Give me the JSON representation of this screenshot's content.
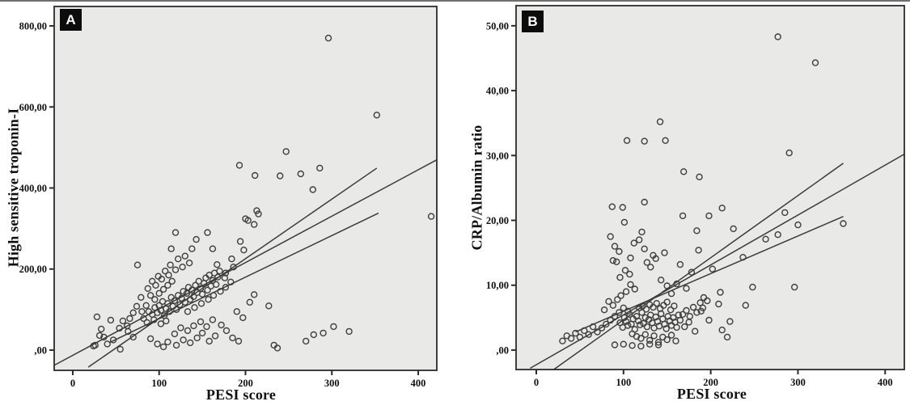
{
  "colors": {
    "plot_bg": "#e9e9e7",
    "frame": "#2b2b2b",
    "point_stroke": "#3d3d3d",
    "fit_line": "#3a3a3a",
    "text": "#111111",
    "badge_bg": "#0c0c0c",
    "badge_fg": "#ffffff"
  },
  "chart_data": [
    {
      "type": "scatter",
      "panel": "A",
      "xlabel": "PESI score",
      "ylabel": "High sensitive troponin-I",
      "xlim": [
        -21.5,
        421.5
      ],
      "ylim": [
        -50,
        848
      ],
      "grid": false,
      "legend": "none",
      "x_ticks": [
        {
          "v": 0,
          "label": "0"
        },
        {
          "v": 100,
          "label": "100"
        },
        {
          "v": 200,
          "label": "200"
        },
        {
          "v": 300,
          "label": "300"
        },
        {
          "v": 400,
          "label": "400"
        }
      ],
      "y_ticks": [
        {
          "v": 0,
          "label": ",00"
        },
        {
          "v": 200,
          "label": "200,00"
        },
        {
          "v": 400,
          "label": "400,00"
        },
        {
          "v": 600,
          "label": "600,00"
        },
        {
          "v": 800,
          "label": "800,00"
        }
      ],
      "fit_lines": [
        [
          -21,
          -37,
          421,
          469
        ],
        [
          18,
          -42,
          352,
          449
        ],
        [
          42,
          18,
          354,
          338
        ]
      ],
      "points": [
        [
          296,
          770
        ],
        [
          352,
          580
        ],
        [
          247,
          490
        ],
        [
          193,
          456
        ],
        [
          211,
          431
        ],
        [
          240,
          430
        ],
        [
          264,
          435
        ],
        [
          286,
          449
        ],
        [
          278,
          396
        ],
        [
          415,
          330
        ],
        [
          213,
          344
        ],
        [
          215,
          336
        ],
        [
          200,
          324
        ],
        [
          210,
          310
        ],
        [
          203,
          320
        ],
        [
          194,
          268
        ],
        [
          198,
          247
        ],
        [
          184,
          225
        ],
        [
          167,
          211
        ],
        [
          143,
          273
        ],
        [
          156,
          290
        ],
        [
          119,
          290
        ],
        [
          114,
          250
        ],
        [
          138,
          250
        ],
        [
          162,
          250
        ],
        [
          75,
          210
        ],
        [
          210,
          137
        ],
        [
          227,
          109
        ],
        [
          237,
          5
        ],
        [
          279,
          38
        ],
        [
          290,
          42
        ],
        [
          302,
          58
        ],
        [
          320,
          46
        ],
        [
          270,
          22
        ],
        [
          233,
          12
        ],
        [
          190,
          95
        ],
        [
          197,
          80
        ],
        [
          205,
          118
        ],
        [
          172,
          62
        ],
        [
          178,
          48
        ],
        [
          185,
          30
        ],
        [
          192,
          22
        ],
        [
          165,
          35
        ],
        [
          158,
          22
        ],
        [
          150,
          42
        ],
        [
          144,
          30
        ],
        [
          136,
          18
        ],
        [
          128,
          25
        ],
        [
          120,
          12
        ],
        [
          110,
          20
        ],
        [
          105,
          8
        ],
        [
          98,
          15
        ],
        [
          90,
          28
        ],
        [
          118,
          40
        ],
        [
          125,
          55
        ],
        [
          133,
          48
        ],
        [
          140,
          60
        ],
        [
          148,
          70
        ],
        [
          155,
          58
        ],
        [
          162,
          75
        ],
        [
          88,
          95
        ],
        [
          92,
          88
        ],
        [
          95,
          105
        ],
        [
          98,
          92
        ],
        [
          100,
          110
        ],
        [
          102,
          98
        ],
        [
          104,
          120
        ],
        [
          106,
          85
        ],
        [
          108,
          102
        ],
        [
          110,
          115
        ],
        [
          112,
          95
        ],
        [
          114,
          130
        ],
        [
          116,
          108
        ],
        [
          118,
          122
        ],
        [
          120,
          100
        ],
        [
          122,
          135
        ],
        [
          124,
          112
        ],
        [
          126,
          128
        ],
        [
          128,
          145
        ],
        [
          130,
          118
        ],
        [
          132,
          140
        ],
        [
          134,
          155
        ],
        [
          136,
          125
        ],
        [
          138,
          148
        ],
        [
          140,
          132
        ],
        [
          142,
          160
        ],
        [
          144,
          142
        ],
        [
          146,
          170
        ],
        [
          148,
          152
        ],
        [
          150,
          138
        ],
        [
          152,
          165
        ],
        [
          154,
          178
        ],
        [
          156,
          148
        ],
        [
          158,
          185
        ],
        [
          160,
          158
        ],
        [
          162,
          172
        ],
        [
          164,
          190
        ],
        [
          166,
          162
        ],
        [
          168,
          180
        ],
        [
          170,
          195
        ],
        [
          100,
          140
        ],
        [
          105,
          150
        ],
        [
          110,
          160
        ],
        [
          115,
          170
        ],
        [
          95,
          125
        ],
        [
          90,
          135
        ],
        [
          85,
          110
        ],
        [
          80,
          95
        ],
        [
          82,
          78
        ],
        [
          86,
          68
        ],
        [
          94,
          75
        ],
        [
          102,
          65
        ],
        [
          108,
          72
        ],
        [
          96,
          160
        ],
        [
          103,
          175
        ],
        [
          111,
          185
        ],
        [
          119,
          198
        ],
        [
          127,
          205
        ],
        [
          135,
          215
        ],
        [
          122,
          225
        ],
        [
          130,
          232
        ],
        [
          113,
          210
        ],
        [
          107,
          195
        ],
        [
          99,
          182
        ],
        [
          92,
          170
        ],
        [
          87,
          152
        ],
        [
          79,
          130
        ],
        [
          74,
          108
        ],
        [
          70,
          92
        ],
        [
          66,
          78
        ],
        [
          63,
          60
        ],
        [
          133,
          95
        ],
        [
          141,
          105
        ],
        [
          149,
          115
        ],
        [
          157,
          125
        ],
        [
          163,
          135
        ],
        [
          171,
          145
        ],
        [
          177,
          155
        ],
        [
          183,
          168
        ],
        [
          176,
          178
        ],
        [
          28,
          82
        ],
        [
          33,
          52
        ],
        [
          24,
          10
        ],
        [
          44,
          74
        ],
        [
          31,
          36
        ],
        [
          36,
          32
        ],
        [
          54,
          54
        ],
        [
          58,
          72
        ],
        [
          64,
          46
        ],
        [
          70,
          32
        ],
        [
          26,
          12
        ],
        [
          55,
          2
        ],
        [
          47,
          25
        ],
        [
          40,
          15
        ],
        [
          177,
          190
        ],
        [
          186,
          205
        ]
      ]
    },
    {
      "type": "scatter",
      "panel": "B",
      "xlabel": "PESI score",
      "ylabel": "CRP/Albumin ratio",
      "xlim": [
        -23.2,
        422
      ],
      "ylim": [
        -3,
        53.1
      ],
      "grid": false,
      "legend": "none",
      "x_ticks": [
        {
          "v": 0,
          "label": "0"
        },
        {
          "v": 100,
          "label": "100"
        },
        {
          "v": 200,
          "label": "200"
        },
        {
          "v": 300,
          "label": "300"
        },
        {
          "v": 400,
          "label": "400"
        }
      ],
      "y_ticks": [
        {
          "v": 0,
          "label": ",00"
        },
        {
          "v": 10,
          "label": "10,00"
        },
        {
          "v": 20,
          "label": "20,00"
        },
        {
          "v": 30,
          "label": "30,00"
        },
        {
          "v": 40,
          "label": "40,00"
        },
        {
          "v": 50,
          "label": "50,00"
        }
      ],
      "fit_lines": [
        [
          -7,
          -2.8,
          422,
          30.2
        ],
        [
          20,
          -3.0,
          352,
          28.8
        ],
        [
          45,
          2.8,
          352,
          20.6
        ]
      ],
      "points": [
        [
          277,
          48.3
        ],
        [
          320,
          44.3
        ],
        [
          290,
          30.4
        ],
        [
          352,
          19.5
        ],
        [
          142,
          35.2
        ],
        [
          104,
          32.3
        ],
        [
          124,
          32.2
        ],
        [
          148,
          32.3
        ],
        [
          169,
          27.5
        ],
        [
          187,
          26.7
        ],
        [
          124,
          22.8
        ],
        [
          87,
          22.1
        ],
        [
          99,
          22.0
        ],
        [
          101,
          19.7
        ],
        [
          168,
          20.7
        ],
        [
          198,
          20.7
        ],
        [
          184,
          18.4
        ],
        [
          121,
          18.2
        ],
        [
          124,
          15.6
        ],
        [
          147,
          15.0
        ],
        [
          134,
          14.6
        ],
        [
          137,
          14.1
        ],
        [
          88,
          13.8
        ],
        [
          92,
          13.6
        ],
        [
          108,
          14.2
        ],
        [
          186,
          15.4
        ],
        [
          213,
          21.9
        ],
        [
          226,
          18.7
        ],
        [
          285,
          21.2
        ],
        [
          300,
          19.3
        ],
        [
          277,
          17.8
        ],
        [
          263,
          17.1
        ],
        [
          202,
          12.5
        ],
        [
          237,
          14.3
        ],
        [
          248,
          9.7
        ],
        [
          296,
          9.7
        ],
        [
          211,
          8.9
        ],
        [
          191,
          6.5
        ],
        [
          209,
          7.1
        ],
        [
          189,
          6.0
        ],
        [
          240,
          6.9
        ],
        [
          198,
          4.6
        ],
        [
          222,
          4.4
        ],
        [
          213,
          3.1
        ],
        [
          219,
          2.0
        ],
        [
          172,
          9.5
        ],
        [
          161,
          10.2
        ],
        [
          155,
          8.7
        ],
        [
          150,
          9.9
        ],
        [
          143,
          10.8
        ],
        [
          178,
          12.0
        ],
        [
          165,
          13.2
        ],
        [
          96,
          4.2
        ],
        [
          99,
          3.5
        ],
        [
          101,
          5.0
        ],
        [
          103,
          4.4
        ],
        [
          105,
          3.8
        ],
        [
          107,
          5.5
        ],
        [
          109,
          4.0
        ],
        [
          111,
          4.8
        ],
        [
          113,
          3.2
        ],
        [
          115,
          5.2
        ],
        [
          117,
          4.5
        ],
        [
          119,
          3.9
        ],
        [
          121,
          5.8
        ],
        [
          123,
          4.1
        ],
        [
          125,
          5.0
        ],
        [
          127,
          3.6
        ],
        [
          129,
          4.7
        ],
        [
          131,
          5.4
        ],
        [
          133,
          4.2
        ],
        [
          135,
          3.4
        ],
        [
          137,
          5.1
        ],
        [
          139,
          4.4
        ],
        [
          141,
          3.7
        ],
        [
          143,
          5.6
        ],
        [
          145,
          4.8
        ],
        [
          147,
          4.0
        ],
        [
          149,
          3.3
        ],
        [
          151,
          5.2
        ],
        [
          153,
          4.5
        ],
        [
          155,
          3.8
        ],
        [
          157,
          5.0
        ],
        [
          159,
          4.3
        ],
        [
          161,
          3.5
        ],
        [
          163,
          5.4
        ],
        [
          165,
          4.6
        ],
        [
          110,
          2.5
        ],
        [
          115,
          2.1
        ],
        [
          120,
          1.8
        ],
        [
          125,
          2.4
        ],
        [
          130,
          1.5
        ],
        [
          135,
          2.2
        ],
        [
          140,
          1.2
        ],
        [
          145,
          2.0
        ],
        [
          150,
          1.6
        ],
        [
          155,
          2.3
        ],
        [
          160,
          1.4
        ],
        [
          118,
          6.5
        ],
        [
          122,
          6.8
        ],
        [
          126,
          6.3
        ],
        [
          130,
          7.0
        ],
        [
          134,
          6.6
        ],
        [
          138,
          7.2
        ],
        [
          142,
          6.4
        ],
        [
          146,
          6.9
        ],
        [
          150,
          7.4
        ],
        [
          154,
          6.2
        ],
        [
          158,
          6.8
        ],
        [
          105,
          6.0
        ],
        [
          100,
          6.5
        ],
        [
          95,
          5.8
        ],
        [
          90,
          5.2
        ],
        [
          85,
          4.6
        ],
        [
          80,
          4.0
        ],
        [
          75,
          3.4
        ],
        [
          70,
          2.8
        ],
        [
          65,
          3.6
        ],
        [
          60,
          2.4
        ],
        [
          55,
          3.0
        ],
        [
          50,
          2.0
        ],
        [
          45,
          2.6
        ],
        [
          40,
          1.8
        ],
        [
          35,
          2.2
        ],
        [
          30,
          1.4
        ],
        [
          90,
          0.8
        ],
        [
          100,
          0.9
        ],
        [
          110,
          0.7
        ],
        [
          120,
          0.6
        ],
        [
          130,
          0.9
        ],
        [
          140,
          0.8
        ],
        [
          168,
          5.5
        ],
        [
          172,
          6.1
        ],
        [
          176,
          5.2
        ],
        [
          180,
          6.6
        ],
        [
          184,
          5.8
        ],
        [
          188,
          7.3
        ],
        [
          192,
          8.1
        ],
        [
          196,
          7.6
        ],
        [
          175,
          4.3
        ],
        [
          170,
          3.6
        ],
        [
          182,
          2.9
        ],
        [
          93,
          7.8
        ],
        [
          97,
          8.4
        ],
        [
          103,
          9.0
        ],
        [
          108,
          10.1
        ],
        [
          113,
          9.4
        ],
        [
          88,
          6.9
        ],
        [
          83,
          7.5
        ],
        [
          78,
          6.2
        ],
        [
          96,
          11.2
        ],
        [
          102,
          12.3
        ],
        [
          107,
          11.7
        ],
        [
          90,
          16.0
        ],
        [
          95,
          15.2
        ],
        [
          85,
          17.5
        ],
        [
          112,
          16.5
        ],
        [
          118,
          17.0
        ],
        [
          131,
          12.8
        ],
        [
          127,
          13.5
        ]
      ]
    }
  ]
}
